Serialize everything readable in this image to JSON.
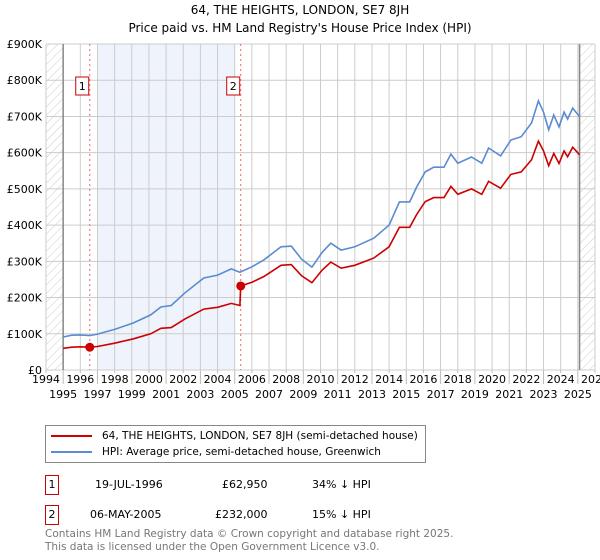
{
  "chart_data": {
    "type": "line",
    "title": "64, THE HEIGHTS, LONDON, SE7 8JH",
    "subtitle": "Price paid vs. HM Land Registry's House Price Index (HPI)",
    "xlim": [
      1994,
      2026
    ],
    "ylim": [
      0,
      900000
    ],
    "x_ticks": [
      "1994",
      "1995",
      "1996",
      "1997",
      "1998",
      "1999",
      "2000",
      "2001",
      "2002",
      "2003",
      "2004",
      "2005",
      "2006",
      "2007",
      "2008",
      "2009",
      "2010",
      "2011",
      "2012",
      "2013",
      "2014",
      "2015",
      "2016",
      "2017",
      "2018",
      "2019",
      "2020",
      "2021",
      "2022",
      "2023",
      "2024",
      "2025",
      "2026"
    ],
    "y_ticks": [
      {
        "v": 0,
        "label": "£0"
      },
      {
        "v": 100000,
        "label": "£100K"
      },
      {
        "v": 200000,
        "label": "£200K"
      },
      {
        "v": 300000,
        "label": "£300K"
      },
      {
        "v": 400000,
        "label": "£400K"
      },
      {
        "v": 500000,
        "label": "£500K"
      },
      {
        "v": 600000,
        "label": "£600K"
      },
      {
        "v": 700000,
        "label": "£700K"
      },
      {
        "v": 800000,
        "label": "£800K"
      },
      {
        "v": 900000,
        "label": "£900K"
      }
    ],
    "data_range": [
      1995,
      2025.1
    ],
    "shaded_span": [
      1997,
      2005
    ],
    "grid": true,
    "series": [
      {
        "name": "64, THE HEIGHTS, LONDON, SE7 8JH (semi-detached house)",
        "color": "#cc0000",
        "x": [
          1995,
          1995.5,
          1996,
          1996.55,
          1997,
          1998,
          1999.1,
          2000.1,
          2000.7,
          2001.3,
          2002.1,
          2003.2,
          2004,
          2004.8,
          2005.3,
          2005.35,
          2006,
          2006.7,
          2007.7,
          2008.3,
          2008.9,
          2009.5,
          2010.1,
          2010.6,
          2011.2,
          2012,
          2013.1,
          2014,
          2014.6,
          2015.2,
          2015.6,
          2016.1,
          2016.6,
          2017.2,
          2017.6,
          2018,
          2018.8,
          2019.4,
          2019.8,
          2020.5,
          2021.1,
          2021.7,
          2022.3,
          2022.7,
          2023,
          2023.3,
          2023.6,
          2023.9,
          2024.2,
          2024.4,
          2024.7,
          2025.1
        ],
        "y": [
          60000,
          63000,
          64000,
          62950,
          65000,
          74000,
          86000,
          100000,
          115000,
          117000,
          141000,
          168000,
          173000,
          184000,
          178000,
          232000,
          242000,
          258000,
          289000,
          291000,
          260000,
          241000,
          276000,
          298000,
          281000,
          289000,
          309000,
          340000,
          394000,
          394000,
          429000,
          465000,
          476000,
          476000,
          507000,
          485000,
          500000,
          485000,
          521000,
          502000,
          540000,
          547000,
          580000,
          632000,
          605000,
          564000,
          598000,
          570000,
          605000,
          589000,
          615000,
          594000
        ]
      },
      {
        "name": "HPI: Average price, semi-detached house, Greenwich",
        "color": "#5b8bd0",
        "x": [
          1995,
          1995.5,
          1996,
          1996.55,
          1997,
          1998,
          1999.1,
          2000.1,
          2000.7,
          2001.3,
          2002.1,
          2003.2,
          2004,
          2004.8,
          2005.3,
          2006,
          2006.7,
          2007.7,
          2008.3,
          2008.9,
          2009.5,
          2010.1,
          2010.6,
          2011.2,
          2012,
          2013.1,
          2014,
          2014.6,
          2015.2,
          2015.6,
          2016.1,
          2016.6,
          2017.2,
          2017.6,
          2018,
          2018.8,
          2019.4,
          2019.8,
          2020.5,
          2021.1,
          2021.7,
          2022.3,
          2022.7,
          2023,
          2023.3,
          2023.6,
          2023.9,
          2024.2,
          2024.4,
          2024.7,
          2025.1
        ],
        "y": [
          91000,
          96000,
          97000,
          95000,
          99000,
          112000,
          130000,
          152000,
          174000,
          178000,
          213000,
          254000,
          262000,
          279000,
          270000,
          285000,
          304000,
          340000,
          342000,
          306000,
          284000,
          325000,
          350000,
          331000,
          340000,
          364000,
          400000,
          464000,
          464000,
          505000,
          547000,
          560000,
          560000,
          596000,
          571000,
          588000,
          571000,
          613000,
          591000,
          635000,
          644000,
          682000,
          743000,
          712000,
          663000,
          704000,
          671000,
          712000,
          693000,
          723000,
          699000
        ]
      }
    ],
    "annotations": [
      {
        "label": "1",
        "x": 1996.55,
        "y": 62950
      },
      {
        "label": "2",
        "x": 2005.35,
        "y": 232000
      }
    ]
  },
  "legend": {
    "property": "64, THE HEIGHTS, LONDON, SE7 8JH (semi-detached house)",
    "hpi": "HPI: Average price, semi-detached house, Greenwich"
  },
  "sales": [
    {
      "num": "1",
      "date": "19-JUL-1996",
      "price": "£62,950",
      "diff": "34% ↓ HPI"
    },
    {
      "num": "2",
      "date": "06-MAY-2005",
      "price": "£232,000",
      "diff": "15% ↓ HPI"
    }
  ],
  "footer": {
    "line1": "Contains HM Land Registry data © Crown copyright and database right 2025.",
    "line2": "This data is licensed under the Open Government Licence v3.0."
  }
}
